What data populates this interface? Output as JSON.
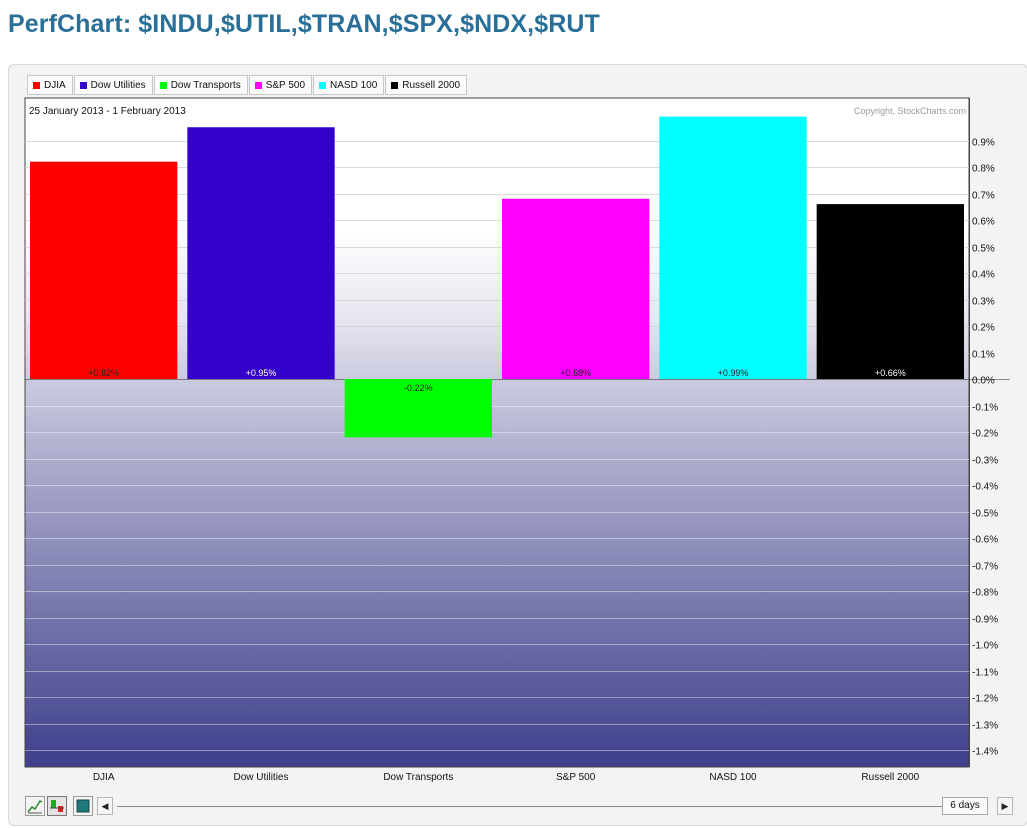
{
  "page": {
    "title": "PerfChart: $INDU,$UTIL,$TRAN,$SPX,$NDX,$RUT"
  },
  "legend": [
    {
      "label": "DJIA",
      "color": "#ff0000"
    },
    {
      "label": "Dow Utilities",
      "color": "#3300cc"
    },
    {
      "label": "Dow Transports",
      "color": "#00ff00"
    },
    {
      "label": "S&P 500",
      "color": "#ff00ff"
    },
    {
      "label": "NASD 100",
      "color": "#00ffff"
    },
    {
      "label": "Russell 2000",
      "color": "#000000"
    }
  ],
  "chart": {
    "date_range": "25 January 2013 - 1 February 2013",
    "copyright": "Copyright, StockCharts.com"
  },
  "chart_data": {
    "type": "bar",
    "categories": [
      "DJIA",
      "Dow Utilities",
      "Dow Transports",
      "S&P 500",
      "NASD 100",
      "Russell 2000"
    ],
    "values": [
      0.82,
      0.95,
      -0.22,
      0.68,
      0.99,
      0.66
    ],
    "value_labels": [
      "+0.82%",
      "+0.95%",
      "-0.22%",
      "+0.68%",
      "+0.99%",
      "+0.66%"
    ],
    "colors": [
      "#ff0000",
      "#3300cc",
      "#00ff00",
      "#ff00ff",
      "#00ffff",
      "#000000"
    ],
    "label_colors": [
      "#222222",
      "#ffffff",
      "#222222",
      "#222222",
      "#222222",
      "#ffffff"
    ],
    "yticks": [
      0.9,
      0.8,
      0.7,
      0.6,
      0.5,
      0.4,
      0.3,
      0.2,
      0.1,
      0.0,
      -0.1,
      -0.2,
      -0.3,
      -0.4,
      -0.5,
      -0.6,
      -0.7,
      -0.8,
      -0.9,
      -1.0,
      -1.1,
      -1.2,
      -1.3,
      -1.4
    ],
    "ytick_labels": [
      "0.9%",
      "0.8%",
      "0.7%",
      "0.6%",
      "0.5%",
      "0.4%",
      "0.3%",
      "0.2%",
      "0.1%",
      "0.0%",
      "-0.1%",
      "-0.2%",
      "-0.3%",
      "-0.4%",
      "-0.5%",
      "-0.6%",
      "-0.7%",
      "-0.8%",
      "-0.9%",
      "-1.0%",
      "-1.1%",
      "-1.2%",
      "-1.3%",
      "-1.4%"
    ],
    "ylim": [
      -1.46,
      1.05
    ],
    "grid": true,
    "title": "",
    "xlabel": "",
    "ylabel": ""
  },
  "footer": {
    "range_label": "6 days",
    "prev_label": "◀",
    "next_label": "▶"
  }
}
